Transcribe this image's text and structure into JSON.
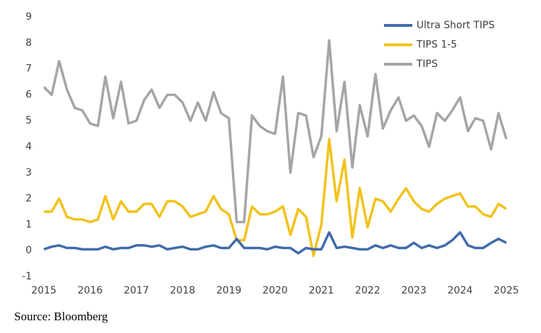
{
  "chart_data": {
    "type": "line",
    "source": "Source: Bloomberg",
    "legend": "upper right",
    "grid": false,
    "xlim": [
      2015,
      2025
    ],
    "xticks": [
      2015,
      2016,
      2017,
      2018,
      2019,
      2020,
      2021,
      2022,
      2023,
      2024,
      2025
    ],
    "ylim": [
      -1,
      9
    ],
    "yticks": [
      -1,
      0,
      1,
      2,
      3,
      4,
      5,
      6,
      7,
      8,
      9
    ],
    "x": [
      2015,
      2015.17,
      2015.33,
      2015.5,
      2015.67,
      2015.83,
      2016,
      2016.17,
      2016.33,
      2016.5,
      2016.67,
      2016.83,
      2017,
      2017.17,
      2017.33,
      2017.5,
      2017.67,
      2017.83,
      2018,
      2018.17,
      2018.33,
      2018.5,
      2018.67,
      2018.83,
      2019,
      2019.17,
      2019.33,
      2019.5,
      2019.67,
      2019.83,
      2020,
      2020.17,
      2020.33,
      2020.5,
      2020.67,
      2020.83,
      2021,
      2021.17,
      2021.33,
      2021.5,
      2021.67,
      2021.83,
      2022,
      2022.17,
      2022.33,
      2022.5,
      2022.67,
      2022.83,
      2023,
      2023.17,
      2023.33,
      2023.5,
      2023.67,
      2023.83,
      2024,
      2024.17,
      2024.33,
      2024.5,
      2024.67,
      2024.83,
      2025
    ],
    "series": [
      {
        "name": "Ultra Short TIPS",
        "color": "#3f6bab",
        "values": [
          0.05,
          0.15,
          0.2,
          0.1,
          0.1,
          0.05,
          0.05,
          0.05,
          0.15,
          0.05,
          0.1,
          0.1,
          0.2,
          0.2,
          0.15,
          0.2,
          0.05,
          0.1,
          0.15,
          0.05,
          0.05,
          0.15,
          0.2,
          0.1,
          0.1,
          0.45,
          0.1,
          0.1,
          0.1,
          0.05,
          0.15,
          0.1,
          0.1,
          -0.1,
          0.1,
          0.05,
          0.05,
          0.7,
          0.1,
          0.15,
          0.1,
          0.05,
          0.05,
          0.2,
          0.1,
          0.2,
          0.1,
          0.1,
          0.3,
          0.1,
          0.2,
          0.1,
          0.2,
          0.4,
          0.7,
          0.2,
          0.1,
          0.1,
          0.3,
          0.45,
          0.3
        ]
      },
      {
        "name": "TIPS 1-5",
        "color": "#f2c21b",
        "values": [
          1.5,
          1.5,
          2.0,
          1.3,
          1.2,
          1.2,
          1.1,
          1.2,
          2.1,
          1.2,
          1.9,
          1.5,
          1.5,
          1.8,
          1.8,
          1.3,
          1.9,
          1.9,
          1.7,
          1.3,
          1.4,
          1.5,
          2.1,
          1.6,
          1.4,
          0.4,
          0.4,
          1.7,
          1.4,
          1.4,
          1.5,
          1.7,
          0.6,
          1.6,
          1.3,
          -0.2,
          1.0,
          4.3,
          1.9,
          3.5,
          0.5,
          2.4,
          0.9,
          2.0,
          1.9,
          1.5,
          2.0,
          2.4,
          1.9,
          1.6,
          1.5,
          1.8,
          2.0,
          2.1,
          2.2,
          1.7,
          1.7,
          1.4,
          1.3,
          1.8,
          1.6
        ]
      },
      {
        "name": "TIPS",
        "color": "#a5a5a5",
        "values": [
          6.3,
          6.0,
          7.3,
          6.2,
          5.5,
          5.4,
          4.9,
          4.8,
          6.7,
          5.1,
          6.5,
          4.9,
          5.0,
          5.8,
          6.2,
          5.5,
          6.0,
          6.0,
          5.7,
          5.0,
          5.7,
          5.0,
          6.1,
          5.3,
          5.1,
          1.1,
          1.1,
          5.2,
          4.8,
          4.6,
          4.5,
          6.7,
          3.0,
          5.3,
          5.2,
          3.6,
          4.4,
          8.1,
          4.6,
          6.5,
          3.2,
          5.6,
          4.4,
          6.8,
          4.7,
          5.4,
          5.9,
          5.0,
          5.2,
          4.8,
          4.0,
          5.3,
          5.0,
          5.4,
          5.9,
          4.6,
          5.1,
          5.0,
          3.9,
          5.3,
          4.3
        ]
      }
    ]
  }
}
